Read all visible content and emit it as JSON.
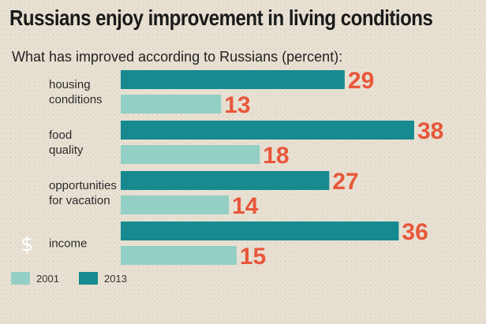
{
  "header": {
    "title": "Russians enjoy improvement in living conditions",
    "subtitle": "What has improved according to Russians (percent):"
  },
  "colors": {
    "background": "#e8e1d3",
    "bar_2013": "#168a8f",
    "bar_2001": "#93cfc5",
    "value_text": "#e8573a"
  },
  "chart_data": {
    "type": "bar",
    "orientation": "horizontal",
    "categories": [
      [
        "housing",
        "conditions"
      ],
      [
        "food",
        "quality"
      ],
      [
        "opportunities",
        "for vacation"
      ],
      [
        "income"
      ]
    ],
    "series": [
      {
        "name": "2013",
        "values": [
          29,
          38,
          27,
          36
        ]
      },
      {
        "name": "2001",
        "values": [
          13,
          18,
          14,
          15
        ]
      }
    ],
    "title": "Russians enjoy improvement in living conditions",
    "subtitle": "What has improved according to Russians (percent):",
    "xlim": [
      0,
      38
    ],
    "grid": false,
    "legend": "bottom-left",
    "icons": [
      "",
      "",
      "",
      "dollar-icon"
    ]
  },
  "legend": [
    {
      "label": "2001",
      "color": "#93cfc5"
    },
    {
      "label": "2013",
      "color": "#168a8f"
    }
  ],
  "icons": {
    "income_symbol": "$"
  }
}
